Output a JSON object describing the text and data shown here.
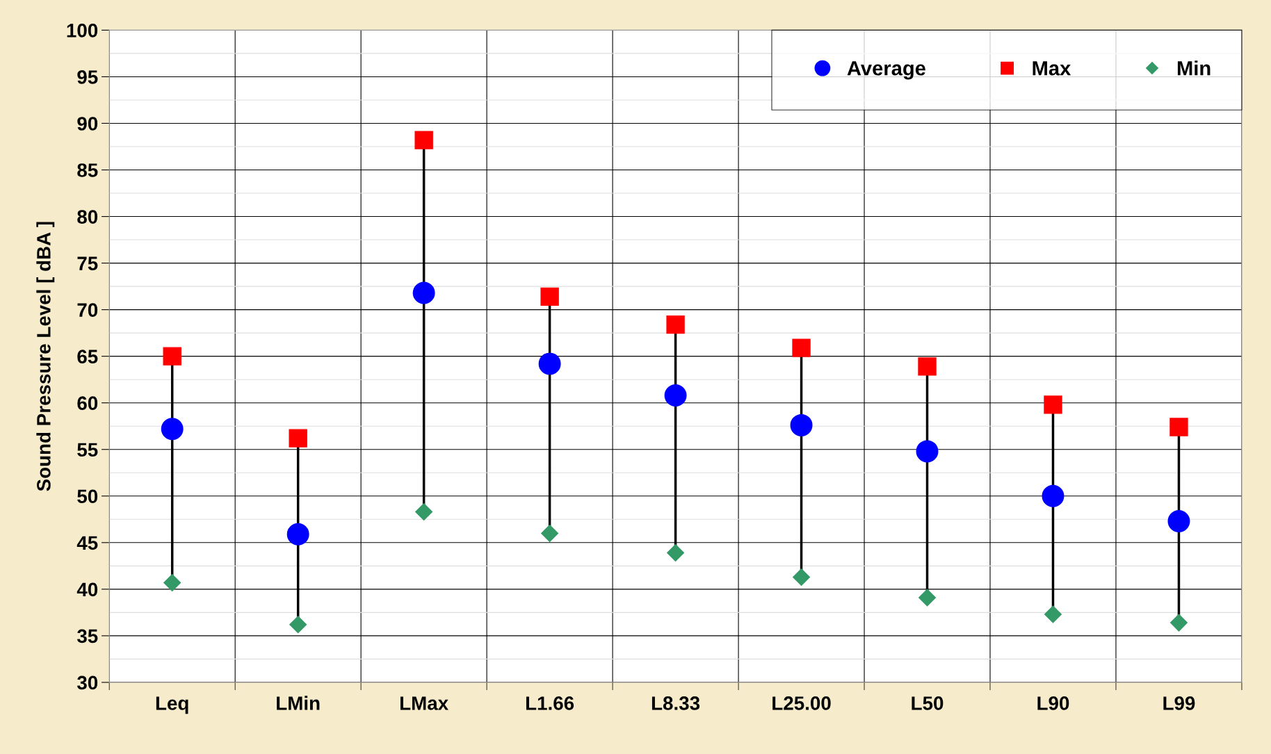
{
  "chart_data": {
    "type": "scatter",
    "ylabel": "Sound Pressure Level [ dBA ]",
    "categories": [
      "Leq",
      "LMin",
      "LMax",
      "L1.66",
      "L8.33",
      "L25.00",
      "L50",
      "L90",
      "L99"
    ],
    "series": [
      {
        "name": "Average",
        "color": "#0000ff",
        "marker": "circle",
        "values": [
          57.2,
          45.9,
          71.8,
          64.2,
          60.8,
          57.6,
          54.8,
          50.0,
          47.3
        ]
      },
      {
        "name": "Max",
        "color": "#ff0000",
        "marker": "square",
        "values": [
          65.0,
          56.2,
          88.2,
          71.4,
          68.4,
          65.9,
          63.9,
          59.8,
          57.4
        ]
      },
      {
        "name": "Min",
        "color": "#339966",
        "marker": "diamond",
        "values": [
          40.7,
          36.2,
          48.3,
          46.0,
          43.9,
          41.3,
          39.1,
          37.3,
          36.4
        ]
      }
    ],
    "ylim": [
      30,
      100
    ],
    "yticks": [
      30,
      35,
      40,
      45,
      50,
      55,
      60,
      65,
      70,
      75,
      80,
      85,
      90,
      95,
      100
    ],
    "grid": "y",
    "legend": "top right"
  }
}
